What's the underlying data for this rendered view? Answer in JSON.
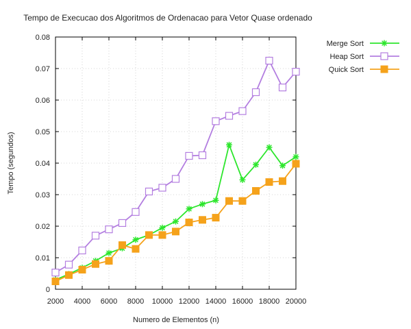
{
  "chart_data": {
    "type": "line",
    "title": "Tempo de Execucao dos Algoritmos de Ordenacao para Vetor Quase ordenado",
    "xlabel": "Numero de Elementos (n)",
    "ylabel": "Tempo (segundos)",
    "xlim": [
      2000,
      20000
    ],
    "ylim": [
      0,
      0.08
    ],
    "xticks": [
      2000,
      4000,
      6000,
      8000,
      10000,
      12000,
      14000,
      16000,
      18000,
      20000
    ],
    "xtick_labels": [
      "2000",
      "4000",
      "6000",
      "8000",
      "10000",
      "12000",
      "14000",
      "16000",
      "18000",
      "20000"
    ],
    "yticks": [
      0,
      0.01,
      0.02,
      0.03,
      0.04,
      0.05,
      0.06,
      0.07,
      0.08
    ],
    "ytick_labels": [
      "0",
      "0.01",
      "0.02",
      "0.03",
      "0.04",
      "0.05",
      "0.06",
      "0.07",
      "0.08"
    ],
    "grid": true,
    "legend_position": "outside-top-right",
    "x": [
      2000,
      3000,
      4000,
      5000,
      6000,
      7000,
      8000,
      9000,
      10000,
      11000,
      12000,
      13000,
      14000,
      15000,
      16000,
      17000,
      18000,
      19000,
      20000
    ],
    "series": [
      {
        "name": "Merge Sort",
        "color": "#2ce62c",
        "marker": "asterisk",
        "values": [
          0.003,
          0.0048,
          0.0068,
          0.009,
          0.0115,
          0.013,
          0.0157,
          0.0172,
          0.0195,
          0.0215,
          0.0255,
          0.027,
          0.0282,
          0.0458,
          0.0347,
          0.0395,
          0.045,
          0.0392,
          0.042
        ]
      },
      {
        "name": "Heap Sort",
        "color": "#b37ee0",
        "marker": "open-square",
        "values": [
          0.0053,
          0.0078,
          0.0123,
          0.017,
          0.019,
          0.021,
          0.0245,
          0.031,
          0.0322,
          0.035,
          0.0423,
          0.0425,
          0.0533,
          0.055,
          0.0565,
          0.0625,
          0.0725,
          0.064,
          0.069
        ]
      },
      {
        "name": "Quick Sort",
        "color": "#f5a21b",
        "marker": "filled-square",
        "values": [
          0.0025,
          0.0045,
          0.0062,
          0.008,
          0.009,
          0.014,
          0.0128,
          0.0172,
          0.0172,
          0.0183,
          0.0212,
          0.022,
          0.0227,
          0.028,
          0.028,
          0.0312,
          0.034,
          0.0343,
          0.0398
        ]
      }
    ]
  }
}
